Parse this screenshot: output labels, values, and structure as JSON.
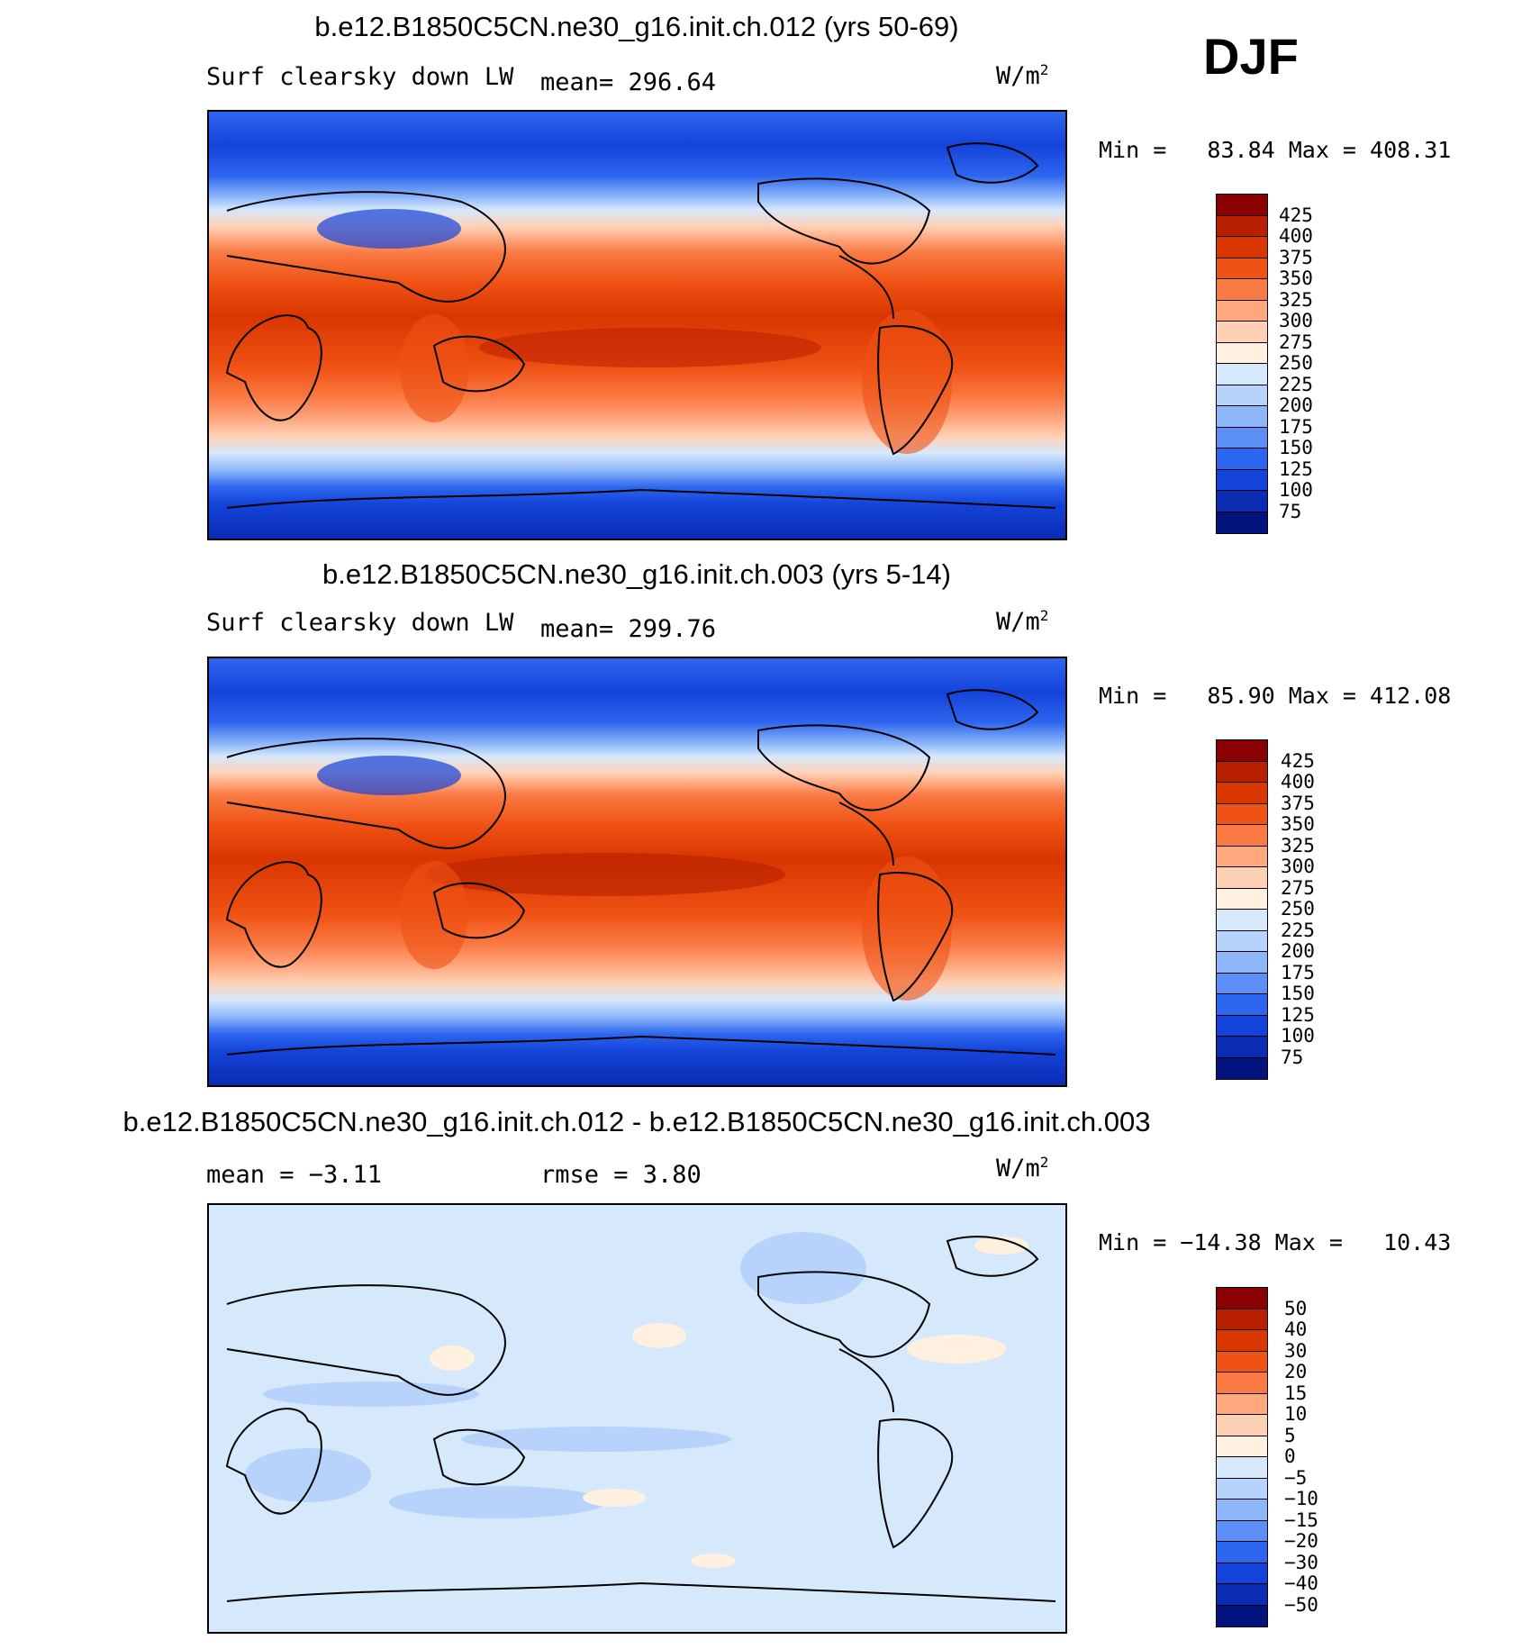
{
  "season": "DJF",
  "panels": [
    {
      "title": "b.e12.B1850C5CN.ne30_g16.init.ch.012 (yrs 50-69)",
      "variable": "Surf clearsky down LW",
      "stat": "mean= 296.64",
      "units": "W/m",
      "units_exp": "2",
      "minmax": "Min =   83.84 Max = 408.31",
      "colorbar": {
        "labels": [
          "425",
          "400",
          "375",
          "350",
          "325",
          "300",
          "275",
          "250",
          "225",
          "200",
          "175",
          "150",
          "125",
          "100",
          "75"
        ],
        "colors": [
          "#8a0000",
          "#b81f00",
          "#d93600",
          "#ef5214",
          "#fa7a44",
          "#ffa77f",
          "#ffd0b4",
          "#fff0e0",
          "#d6e8fc",
          "#b7d3fb",
          "#8db7fa",
          "#5b8ff6",
          "#2d66ee",
          "#1443da",
          "#0a2cb2",
          "#03137d"
        ]
      },
      "chart_data": {
        "type": "heatmap",
        "title": "b.e12.B1850C5CN.ne30_g16.init.ch.012 (yrs 50-69)",
        "field": "Surf clearsky down LW",
        "units": "W/m^2",
        "mean": 296.64,
        "min": 83.84,
        "max": 408.31,
        "levels": [
          75,
          100,
          125,
          150,
          175,
          200,
          225,
          250,
          275,
          300,
          325,
          350,
          375,
          400,
          425
        ],
        "zonal_profile": {
          "lat": [
            90,
            75,
            60,
            45,
            30,
            15,
            0,
            -15,
            -30,
            -45,
            -60,
            -75,
            -90
          ],
          "value": [
            140,
            150,
            175,
            230,
            300,
            370,
            385,
            370,
            320,
            275,
            230,
            140,
            100
          ]
        }
      }
    },
    {
      "title": "b.e12.B1850C5CN.ne30_g16.init.ch.003 (yrs 5-14)",
      "variable": "Surf clearsky down LW",
      "stat": "mean= 299.76",
      "units": "W/m",
      "units_exp": "2",
      "minmax": "Min =   85.90 Max = 412.08",
      "colorbar": {
        "labels": [
          "425",
          "400",
          "375",
          "350",
          "325",
          "300",
          "275",
          "250",
          "225",
          "200",
          "175",
          "150",
          "125",
          "100",
          "75"
        ],
        "colors": [
          "#8a0000",
          "#b81f00",
          "#d93600",
          "#ef5214",
          "#fa7a44",
          "#ffa77f",
          "#ffd0b4",
          "#fff0e0",
          "#d6e8fc",
          "#b7d3fb",
          "#8db7fa",
          "#5b8ff6",
          "#2d66ee",
          "#1443da",
          "#0a2cb2",
          "#03137d"
        ]
      },
      "chart_data": {
        "type": "heatmap",
        "title": "b.e12.B1850C5CN.ne30_g16.init.ch.003 (yrs 5-14)",
        "field": "Surf clearsky down LW",
        "units": "W/m^2",
        "mean": 299.76,
        "min": 85.9,
        "max": 412.08,
        "levels": [
          75,
          100,
          125,
          150,
          175,
          200,
          225,
          250,
          275,
          300,
          325,
          350,
          375,
          400,
          425
        ],
        "zonal_profile": {
          "lat": [
            90,
            75,
            60,
            45,
            30,
            15,
            0,
            -15,
            -30,
            -45,
            -60,
            -75,
            -90
          ],
          "value": [
            140,
            150,
            180,
            235,
            305,
            375,
            390,
            375,
            325,
            280,
            235,
            140,
            100
          ]
        }
      }
    },
    {
      "title": "b.e12.B1850C5CN.ne30_g16.init.ch.012 - b.e12.B1850C5CN.ne30_g16.init.ch.003",
      "stat": "mean =   −3.11",
      "stat2": "rmse =    3.80",
      "units": "W/m",
      "units_exp": "2",
      "minmax": "Min = −14.38 Max =   10.43",
      "colorbar": {
        "labels": [
          "50",
          "40",
          "30",
          "20",
          "15",
          "10",
          "5",
          "0",
          "−5",
          "−10",
          "−15",
          "−20",
          "−30",
          "−40",
          "−50"
        ],
        "colors": [
          "#8a0000",
          "#b81f00",
          "#d93600",
          "#ef5214",
          "#fa7a44",
          "#ffa77f",
          "#ffd0b4",
          "#fff0e0",
          "#d6e8fc",
          "#b7d3fb",
          "#8db7fa",
          "#5b8ff6",
          "#2d66ee",
          "#1443da",
          "#0a2cb2",
          "#03137d"
        ]
      },
      "chart_data": {
        "type": "heatmap",
        "title": "b.e12.B1850C5CN.ne30_g16.init.ch.012 - b.e12.B1850C5CN.ne30_g16.init.ch.003",
        "units": "W/m^2",
        "mean": -3.11,
        "rmse": 3.8,
        "min": -14.38,
        "max": 10.43,
        "levels": [
          -50,
          -40,
          -30,
          -20,
          -15,
          -10,
          -5,
          0,
          5,
          10,
          15,
          20,
          30,
          40,
          50
        ]
      }
    }
  ]
}
